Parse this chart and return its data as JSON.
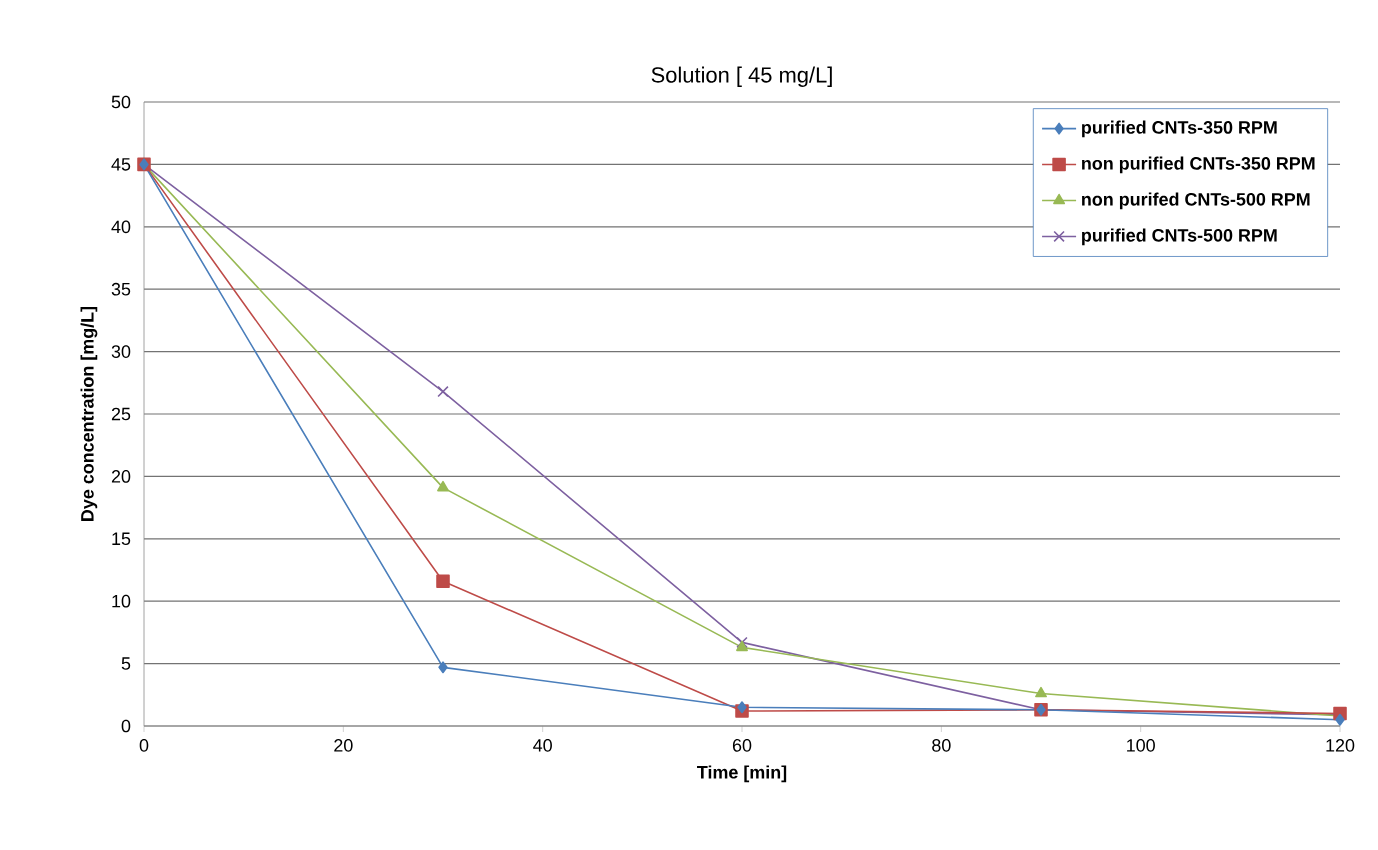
{
  "chart_data": {
    "type": "line",
    "title": "Solution [ 45 mg/L]",
    "xlabel": "Time [min]",
    "ylabel": "Dye concentration [mg/L]",
    "x": [
      0,
      30,
      60,
      90,
      120
    ],
    "series": [
      {
        "name": "purified CNTs-350 RPM",
        "color": "#4a7ebb",
        "marker": "diamond",
        "values": [
          45,
          4.7,
          1.5,
          1.3,
          0.5
        ]
      },
      {
        "name": "non purified CNTs-350 RPM",
        "color": "#be4b48",
        "marker": "square",
        "values": [
          45,
          11.6,
          1.2,
          1.3,
          1.0
        ]
      },
      {
        "name": "non purifed CNTs-500 RPM",
        "color": "#98b954",
        "marker": "triangle",
        "values": [
          45,
          19.1,
          6.3,
          2.6,
          0.8
        ]
      },
      {
        "name": "purified CNTs-500 RPM",
        "color": "#7d60a0",
        "marker": "cross",
        "values": [
          45,
          26.8,
          6.7,
          1.3,
          0.9
        ]
      }
    ],
    "xlim": [
      0,
      120
    ],
    "xticks": [
      0,
      20,
      40,
      60,
      80,
      100,
      120
    ],
    "ylim": [
      0,
      50
    ],
    "yticks": [
      0,
      5,
      10,
      15,
      20,
      25,
      30,
      35,
      40,
      45,
      50
    ],
    "grid": "y",
    "legend": "top right",
    "line_style": "solid"
  }
}
